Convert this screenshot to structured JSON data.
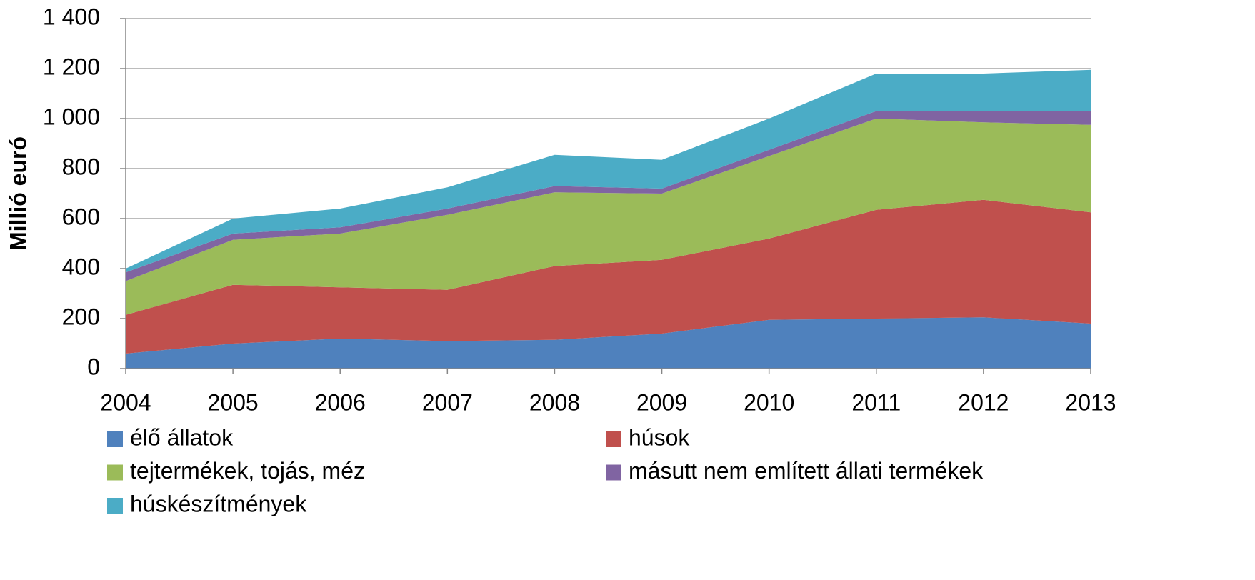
{
  "chart_data": {
    "type": "stacked_area",
    "y_label": "Millió euró",
    "categories": [
      "2004",
      "2005",
      "2006",
      "2007",
      "2008",
      "2009",
      "2010",
      "2011",
      "2012",
      "2013"
    ],
    "series": [
      {
        "name": "élő állatok",
        "color": "#4f81bd",
        "values": [
          60,
          100,
          120,
          110,
          115,
          140,
          195,
          200,
          205,
          180
        ]
      },
      {
        "name": "húsok",
        "color": "#c0504d",
        "values": [
          155,
          235,
          205,
          205,
          295,
          295,
          325,
          435,
          470,
          445
        ]
      },
      {
        "name": "tejtermékek, tojás, méz",
        "color": "#9bbb59",
        "values": [
          135,
          180,
          215,
          300,
          295,
          265,
          330,
          365,
          310,
          350
        ]
      },
      {
        "name": "másutt nem említett állati termékek",
        "color": "#8064a2",
        "values": [
          35,
          25,
          25,
          25,
          25,
          20,
          25,
          30,
          45,
          55
        ]
      },
      {
        "name": "húskészítmények",
        "color": "#4bacc6",
        "values": [
          15,
          60,
          75,
          85,
          125,
          115,
          125,
          150,
          150,
          165
        ]
      }
    ],
    "ylim": [
      0,
      1400
    ],
    "yticks": [
      0,
      200,
      400,
      600,
      800,
      {
        "value": 1000,
        "label": "1 000"
      },
      {
        "value": 1200,
        "label": "1 200"
      },
      {
        "value": 1400,
        "label": "1 400"
      }
    ],
    "grid": true
  }
}
